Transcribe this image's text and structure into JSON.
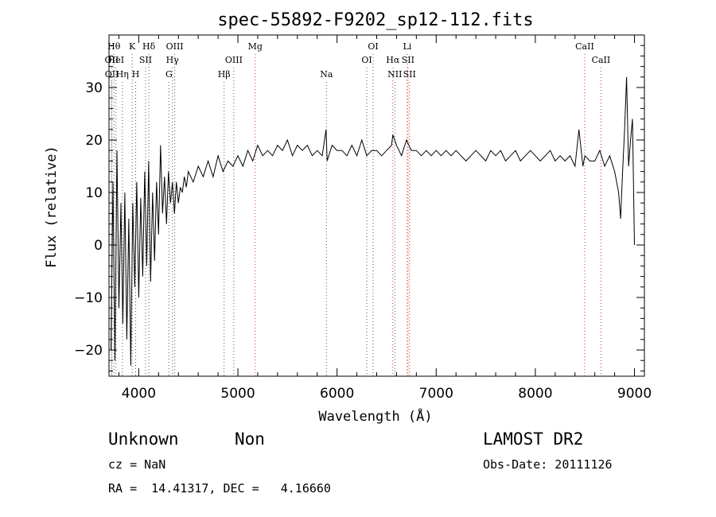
{
  "chart_data": {
    "type": "line",
    "title": "spec-55892-F9202_sp12-112.fits",
    "xlabel": "Wavelength (Å)",
    "ylabel": "Flux (relative)",
    "xlim": [
      3700,
      9100
    ],
    "ylim": [
      -25,
      40
    ],
    "xticks": [
      4000,
      5000,
      6000,
      7000,
      8000,
      9000
    ],
    "yticks": [
      -20,
      -10,
      0,
      10,
      20,
      30
    ],
    "grid": false,
    "line_color": "#000000",
    "marker_colors": {
      "black": "#555555",
      "red": "#d03030"
    },
    "spectrum": {
      "x": [
        3720,
        3740,
        3760,
        3780,
        3800,
        3820,
        3840,
        3860,
        3880,
        3900,
        3920,
        3940,
        3960,
        3980,
        4000,
        4020,
        4040,
        4060,
        4080,
        4100,
        4120,
        4140,
        4160,
        4180,
        4200,
        4220,
        4240,
        4260,
        4280,
        4300,
        4320,
        4340,
        4360,
        4380,
        4400,
        4420,
        4440,
        4460,
        4480,
        4500,
        4550,
        4600,
        4650,
        4700,
        4750,
        4800,
        4850,
        4900,
        4950,
        5000,
        5050,
        5100,
        5150,
        5200,
        5250,
        5300,
        5350,
        5400,
        5450,
        5500,
        5550,
        5600,
        5650,
        5700,
        5750,
        5800,
        5850,
        5890,
        5900,
        5950,
        6000,
        6050,
        6100,
        6150,
        6200,
        6250,
        6300,
        6350,
        6400,
        6450,
        6500,
        6550,
        6563,
        6600,
        6650,
        6700,
        6750,
        6800,
        6850,
        6900,
        6950,
        7000,
        7050,
        7100,
        7150,
        7200,
        7250,
        7300,
        7350,
        7400,
        7450,
        7500,
        7550,
        7600,
        7650,
        7700,
        7750,
        7800,
        7850,
        7900,
        7950,
        8000,
        8050,
        8100,
        8150,
        8200,
        8250,
        8300,
        8350,
        8400,
        8440,
        8480,
        8500,
        8550,
        8600,
        8650,
        8700,
        8750,
        8800,
        8820,
        8840,
        8860,
        8880,
        8900,
        8920,
        8940,
        8960,
        8980,
        9000
      ],
      "y": [
        -20,
        12,
        -22,
        18,
        -12,
        8,
        -15,
        10,
        -18,
        5,
        -23,
        8,
        -8,
        12,
        -10,
        9,
        -6,
        14,
        -4,
        16,
        -7,
        10,
        -3,
        12,
        2,
        19,
        6,
        13,
        4,
        14,
        8,
        12,
        6,
        12,
        8,
        11,
        10,
        13,
        11,
        14,
        12,
        15,
        13,
        16,
        13,
        17,
        14,
        16,
        15,
        17,
        15,
        18,
        16,
        19,
        17,
        18,
        17,
        19,
        18,
        20,
        17,
        19,
        18,
        19,
        17,
        18,
        17,
        22,
        16,
        19,
        18,
        18,
        17,
        19,
        17,
        20,
        17,
        18,
        18,
        17,
        18,
        19,
        21,
        19,
        17,
        20,
        18,
        18,
        17,
        18,
        17,
        18,
        17,
        18,
        17,
        18,
        17,
        16,
        17,
        18,
        17,
        16,
        18,
        17,
        18,
        16,
        17,
        18,
        16,
        17,
        18,
        17,
        16,
        17,
        18,
        16,
        17,
        16,
        17,
        15,
        22,
        15,
        17,
        16,
        16,
        18,
        15,
        17,
        14,
        12,
        10,
        5,
        14,
        22,
        32,
        15,
        20,
        24,
        0
      ]
    },
    "line_markers": [
      {
        "label": "OII",
        "x": 3727,
        "row": 1,
        "color": "black"
      },
      {
        "label": "OII",
        "x": 3729,
        "row": 2,
        "color": "black"
      },
      {
        "label": "Hθ",
        "x": 3750,
        "row": 0,
        "color": "black"
      },
      {
        "label": "HeI",
        "x": 3771,
        "row": 1,
        "color": "black"
      },
      {
        "label": "Hη",
        "x": 3835,
        "row": 2,
        "color": "black"
      },
      {
        "label": "K",
        "x": 3934,
        "row": 0,
        "color": "black"
      },
      {
        "label": "SII",
        "x": 4069,
        "row": 1,
        "color": "black"
      },
      {
        "label": "H",
        "x": 3969,
        "row": 2,
        "color": "black"
      },
      {
        "label": "Hδ",
        "x": 4102,
        "row": 0,
        "color": "black"
      },
      {
        "label": "OIII",
        "x": 4363,
        "row": 0,
        "color": "black"
      },
      {
        "label": "Hγ",
        "x": 4340,
        "row": 1,
        "color": "black"
      },
      {
        "label": "G",
        "x": 4305,
        "row": 2,
        "color": "black"
      },
      {
        "label": "OIII",
        "x": 4959,
        "row": 1,
        "color": "black"
      },
      {
        "label": "Hβ",
        "x": 4861,
        "row": 2,
        "color": "black"
      },
      {
        "label": "Mg",
        "x": 5175,
        "row": 0,
        "color": "red"
      },
      {
        "label": "Na",
        "x": 5893,
        "row": 2,
        "color": "black"
      },
      {
        "label": "OI",
        "x": 6364,
        "row": 0,
        "color": "black"
      },
      {
        "label": "OI",
        "x": 6300,
        "row": 1,
        "color": "black"
      },
      {
        "label": "Hα",
        "x": 6563,
        "row": 1,
        "color": "red"
      },
      {
        "label": "NII",
        "x": 6583,
        "row": 2,
        "color": "black"
      },
      {
        "label": "Li",
        "x": 6708,
        "row": 0,
        "color": "red"
      },
      {
        "label": "SII",
        "x": 6716,
        "row": 1,
        "color": "red"
      },
      {
        "label": "SII",
        "x": 6731,
        "row": 2,
        "color": "red"
      },
      {
        "label": "CaII",
        "x": 8498,
        "row": 0,
        "color": "red"
      },
      {
        "label": "CaII",
        "x": 8662,
        "row": 1,
        "color": "red"
      }
    ]
  },
  "info": {
    "class": "Unknown",
    "subclass": "Non",
    "survey": "LAMOST DR2",
    "cz": "cz = NaN",
    "obs_date": "Obs-Date: 20111126",
    "radec": "RA =  14.41317, DEC =   4.16660"
  }
}
